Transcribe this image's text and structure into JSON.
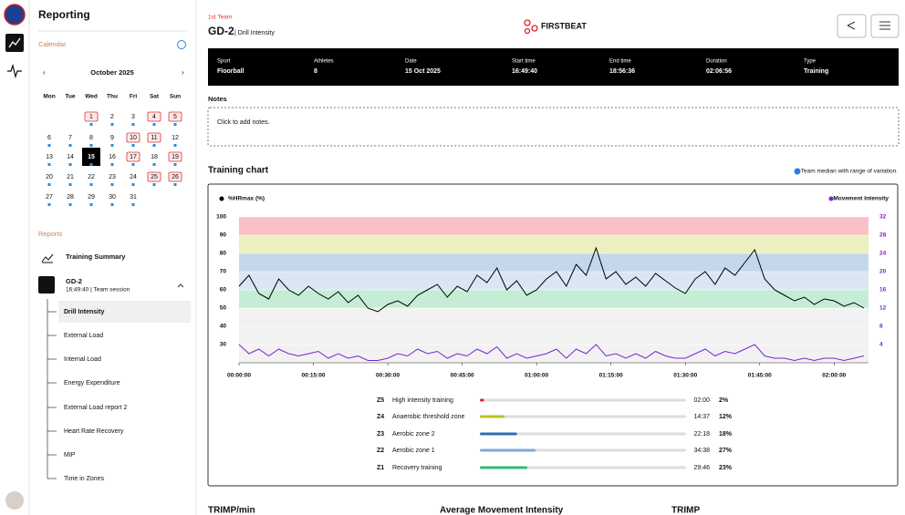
{
  "sidebar": {
    "title": "Reporting",
    "calendar": {
      "label": "Calendar",
      "month": "October 2025",
      "weekdays": [
        "Mon",
        "Tue",
        "Wed",
        "Thu",
        "Fri",
        "Sat",
        "Sun"
      ],
      "weeks": [
        [
          null,
          null,
          1,
          2,
          3,
          4,
          5
        ],
        [
          6,
          7,
          8,
          9,
          10,
          11,
          12
        ],
        [
          13,
          14,
          15,
          16,
          17,
          18,
          19
        ],
        [
          20,
          21,
          22,
          23,
          24,
          25,
          26
        ],
        [
          27,
          28,
          29,
          30,
          31,
          null,
          null
        ]
      ],
      "boxed_days": [
        1,
        4,
        5,
        10,
        11,
        17,
        19,
        25,
        26
      ],
      "selected_day": 15
    },
    "reports": {
      "label": "Reports",
      "summary": "Training Summary",
      "session_title": "GD-2",
      "session_subtitle": "16:49:40 | Team session",
      "items": [
        "Drill Intensity",
        "External Load",
        "Internal Load",
        "Energy Expenditure",
        "External Load report 2",
        "Heart Rate Recovery",
        "MIP",
        "Time in Zones"
      ]
    }
  },
  "header": {
    "team": "1st Team",
    "title": "GD-2",
    "subtitle": "| Drill Intensity",
    "brand": "FIRSTBEAT"
  },
  "session": [
    {
      "label": "Sport",
      "value": "Floorball"
    },
    {
      "label": "Athletes",
      "value": "8"
    },
    {
      "label": "Date",
      "value": "15 Oct 2025"
    },
    {
      "label": "Start time",
      "value": "16:49:40"
    },
    {
      "label": "End time",
      "value": "18:56:36"
    },
    {
      "label": "Duration",
      "value": "02:06:56"
    },
    {
      "label": "Type",
      "value": "Training"
    }
  ],
  "notes": {
    "label": "Notes",
    "placeholder": "Click to add notes."
  },
  "chart_data": {
    "type": "line",
    "title": "Training chart",
    "note": "Team median with range of variation.",
    "x": [
      0,
      120,
      240,
      360,
      480,
      600,
      720,
      840,
      960,
      1080,
      1200,
      1320,
      1440,
      1560,
      1680,
      1800,
      1920,
      2040,
      2160,
      2280,
      2400,
      2520,
      2640,
      2760,
      2880,
      3000,
      3120,
      3240,
      3360,
      3480,
      3600,
      3720,
      3840,
      3960,
      4080,
      4200,
      4320,
      4440,
      4560,
      4680,
      4800,
      4920,
      5040,
      5160,
      5280,
      5400,
      5520,
      5640,
      5760,
      5880,
      6000,
      6120,
      6240,
      6360,
      6480,
      6600,
      6720,
      6840,
      6960,
      7080,
      7200,
      7320,
      7440,
      7560
    ],
    "series": [
      {
        "name": "%HRmax (%)",
        "color": "#000000",
        "values": [
          62,
          68,
          58,
          55,
          66,
          60,
          57,
          62,
          58,
          55,
          59,
          53,
          57,
          50,
          48,
          52,
          54,
          51,
          57,
          60,
          63,
          56,
          62,
          59,
          68,
          64,
          72,
          60,
          65,
          57,
          60,
          66,
          70,
          62,
          74,
          68,
          83,
          66,
          70,
          63,
          67,
          62,
          69,
          65,
          61,
          58,
          66,
          70,
          63,
          72,
          68,
          75,
          82,
          66,
          60,
          57,
          54,
          56,
          52,
          55,
          54,
          51,
          53,
          50
        ]
      },
      {
        "name": "Movement Intensity",
        "color": "#7b22d6",
        "axis": "y2",
        "values": [
          4,
          2,
          3,
          1.5,
          3,
          2,
          1.5,
          2,
          2.5,
          1,
          2,
          1,
          1.5,
          0.5,
          0.5,
          1,
          2,
          1.5,
          3,
          2,
          2.5,
          1,
          2,
          1.5,
          3,
          2,
          3.5,
          1,
          2,
          1,
          1.5,
          2,
          3,
          1,
          3,
          2,
          4,
          1.5,
          2,
          1,
          2,
          1,
          2.5,
          1.5,
          1,
          1,
          2,
          3,
          1.5,
          2.5,
          2,
          3,
          4,
          1.5,
          1,
          1,
          0.5,
          1,
          0.5,
          1,
          1,
          0.5,
          1,
          1.5
        ]
      }
    ],
    "xlim": [
      0,
      7616
    ],
    "xticks": [
      {
        "value": 0,
        "label": "00:00:00"
      },
      {
        "value": 900,
        "label": "00:15:00"
      },
      {
        "value": 1800,
        "label": "00:30:00"
      },
      {
        "value": 2700,
        "label": "00:45:00"
      },
      {
        "value": 3600,
        "label": "01:00:00"
      },
      {
        "value": 4500,
        "label": "01:15:00"
      },
      {
        "value": 5400,
        "label": "01:30:00"
      },
      {
        "value": 6300,
        "label": "01:45:00"
      },
      {
        "value": 7200,
        "label": "02:00:00"
      }
    ],
    "ylim": [
      20,
      100
    ],
    "yticks": [
      30,
      40,
      50,
      60,
      70,
      80,
      90,
      100
    ],
    "y2lim": [
      0,
      32
    ],
    "y2ticks": [
      4,
      8,
      12,
      16,
      20,
      24,
      28,
      32
    ]
  },
  "zones": [
    {
      "code": "Z5",
      "name": "High intensity training",
      "time": "02:00",
      "percent": 2,
      "percent_label": "2%",
      "color": "#e3222f"
    },
    {
      "code": "Z4",
      "name": "Anaerobic threshold zone",
      "time": "14:37",
      "percent": 12,
      "percent_label": "12%",
      "color": "#b9c41c"
    },
    {
      "code": "Z3",
      "name": "Aerobic zone 2",
      "time": "22:18",
      "percent": 18,
      "percent_label": "18%",
      "color": "#2b6fb6"
    },
    {
      "code": "Z2",
      "name": "Aerobic zone 1",
      "time": "34:38",
      "percent": 27,
      "percent_label": "27%",
      "color": "#7fa7d6"
    },
    {
      "code": "Z1",
      "name": "Recovery training",
      "time": "29:46",
      "percent": 23,
      "percent_label": "23%",
      "color": "#2fbd6c"
    }
  ],
  "sections": [
    "TRIMP/min",
    "Average Movement Intensity",
    "TRIMP"
  ]
}
